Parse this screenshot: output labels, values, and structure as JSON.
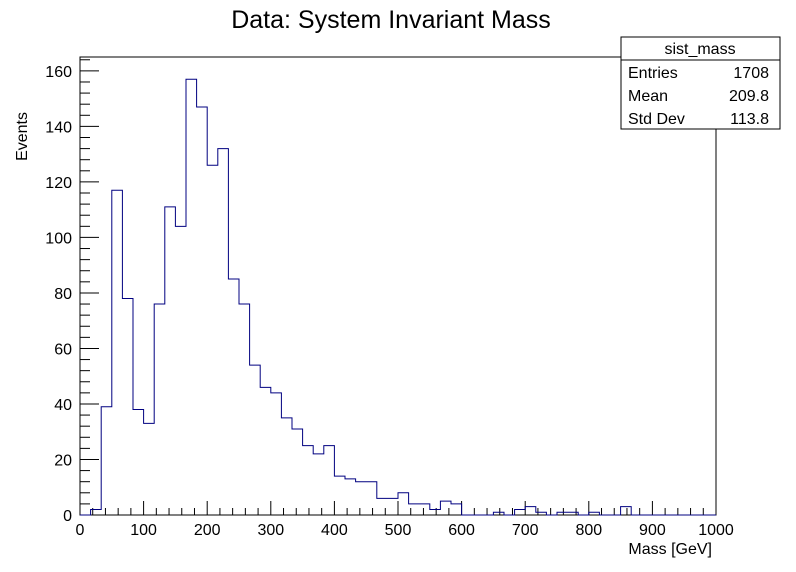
{
  "chart_data": {
    "type": "histogram",
    "title": "Data: System Invariant Mass",
    "xlabel": "Mass [GeV]",
    "ylabel": "Events",
    "xlim": [
      0,
      1000
    ],
    "ylim": [
      0,
      165
    ],
    "bin_width": 16.67,
    "bin_edges": [
      0,
      16.67,
      33.33,
      50,
      66.67,
      83.33,
      100,
      116.67,
      133.33,
      150,
      166.67,
      183.33,
      200,
      216.67,
      233.33,
      250,
      266.67,
      283.33,
      300,
      316.67,
      333.33,
      350,
      366.67,
      383.33,
      400,
      416.67,
      433.33,
      450,
      466.67,
      483.33,
      500,
      516.67,
      533.33,
      550,
      566.67,
      583.33,
      600,
      616.67,
      633.33,
      650,
      666.67,
      683.33,
      700,
      716.67,
      733.33,
      750,
      766.67,
      783.33,
      800,
      816.67,
      833.33,
      850,
      866.67,
      883.33,
      900,
      916.67,
      933.33,
      950,
      966.67,
      983.33,
      1000
    ],
    "values": [
      0,
      2,
      39,
      117,
      78,
      38,
      33,
      76,
      111,
      104,
      157,
      147,
      126,
      132,
      85,
      76,
      54,
      46,
      44,
      35,
      31,
      25,
      22,
      25,
      14,
      13,
      12,
      12,
      6,
      6,
      8,
      4,
      4,
      2,
      5,
      4,
      0,
      0,
      0,
      1,
      0,
      2,
      3,
      1,
      0,
      1,
      1,
      0,
      1,
      0,
      0,
      3,
      0,
      0,
      0,
      0,
      0,
      0,
      0,
      0
    ],
    "x_ticks": [
      "0",
      "100",
      "200",
      "300",
      "400",
      "500",
      "600",
      "700",
      "800",
      "900",
      "1000"
    ],
    "y_ticks": [
      "0",
      "20",
      "40",
      "60",
      "80",
      "100",
      "120",
      "140",
      "160"
    ],
    "stats_box": {
      "name": "sist_mass",
      "rows": [
        {
          "label": "Entries",
          "value": "1708"
        },
        {
          "label": "Mean",
          "value": "209.8"
        },
        {
          "label": "Std Dev",
          "value": "113.8"
        }
      ]
    },
    "colors": {
      "histogram_line": "#000080",
      "axes": "#000000",
      "background": "#ffffff"
    },
    "grid": false
  }
}
